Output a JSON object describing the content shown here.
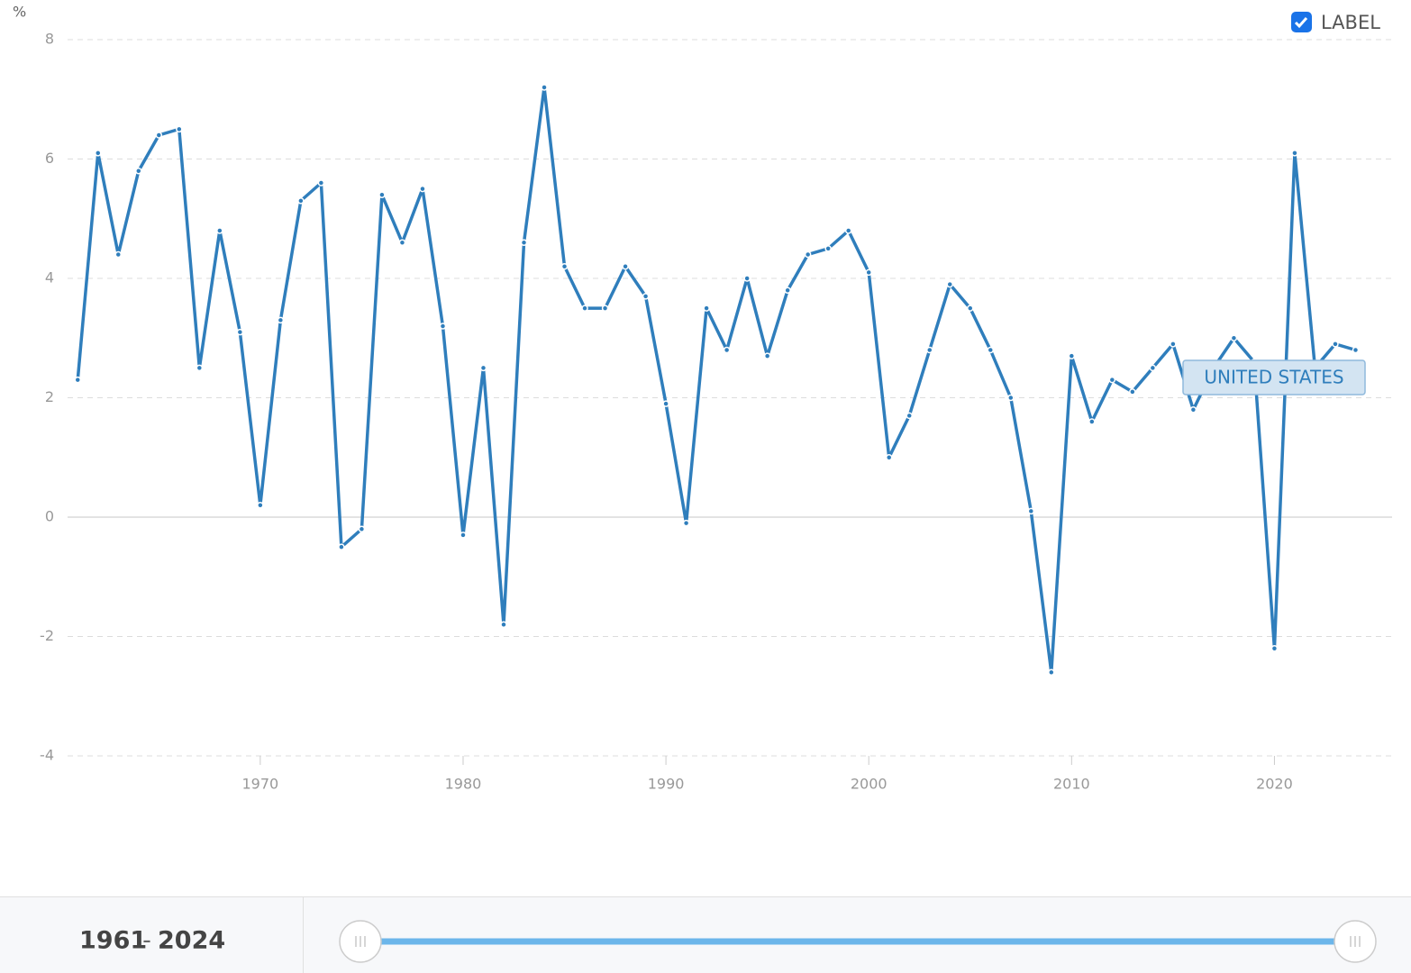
{
  "chart_data": {
    "type": "line",
    "unit_label": "%",
    "x": [
      1961,
      1962,
      1963,
      1964,
      1965,
      1966,
      1967,
      1968,
      1969,
      1970,
      1971,
      1972,
      1973,
      1974,
      1975,
      1976,
      1977,
      1978,
      1979,
      1980,
      1981,
      1982,
      1983,
      1984,
      1985,
      1986,
      1987,
      1988,
      1989,
      1990,
      1991,
      1992,
      1993,
      1994,
      1995,
      1996,
      1997,
      1998,
      1999,
      2000,
      2001,
      2002,
      2003,
      2004,
      2005,
      2006,
      2007,
      2008,
      2009,
      2010,
      2011,
      2012,
      2013,
      2014,
      2015,
      2016,
      2017,
      2018,
      2019,
      2020,
      2021,
      2022,
      2023,
      2024
    ],
    "series": [
      {
        "name": "UNITED STATES",
        "color": "#2f7ebc",
        "values": [
          2.3,
          6.1,
          4.4,
          5.8,
          6.4,
          6.5,
          2.5,
          4.8,
          3.1,
          0.2,
          3.3,
          5.3,
          5.6,
          -0.5,
          -0.2,
          5.4,
          4.6,
          5.5,
          3.2,
          -0.3,
          2.5,
          -1.8,
          4.6,
          7.2,
          4.2,
          3.5,
          3.5,
          4.2,
          3.7,
          1.9,
          -0.1,
          3.5,
          2.8,
          4.0,
          2.7,
          3.8,
          4.4,
          4.5,
          4.8,
          4.1,
          1.0,
          1.7,
          2.8,
          3.9,
          3.5,
          2.8,
          2.0,
          0.1,
          -2.6,
          2.7,
          1.6,
          2.3,
          2.1,
          2.5,
          2.9,
          1.8,
          2.5,
          3.0,
          2.6,
          -2.2,
          6.1,
          2.5,
          2.9,
          2.8
        ]
      }
    ],
    "xlim": [
      1960.5,
      2025.8
    ],
    "xticks": [
      1970,
      1980,
      1990,
      2000,
      2010,
      2020
    ],
    "ylim": [
      -4,
      8
    ],
    "yticks": [
      -4,
      -2,
      0,
      2,
      4,
      6,
      8
    ],
    "grid": true
  },
  "controls": {
    "label_toggle": "LABEL",
    "range_start": "1961",
    "range_separator": "-",
    "range_end": "2024"
  }
}
